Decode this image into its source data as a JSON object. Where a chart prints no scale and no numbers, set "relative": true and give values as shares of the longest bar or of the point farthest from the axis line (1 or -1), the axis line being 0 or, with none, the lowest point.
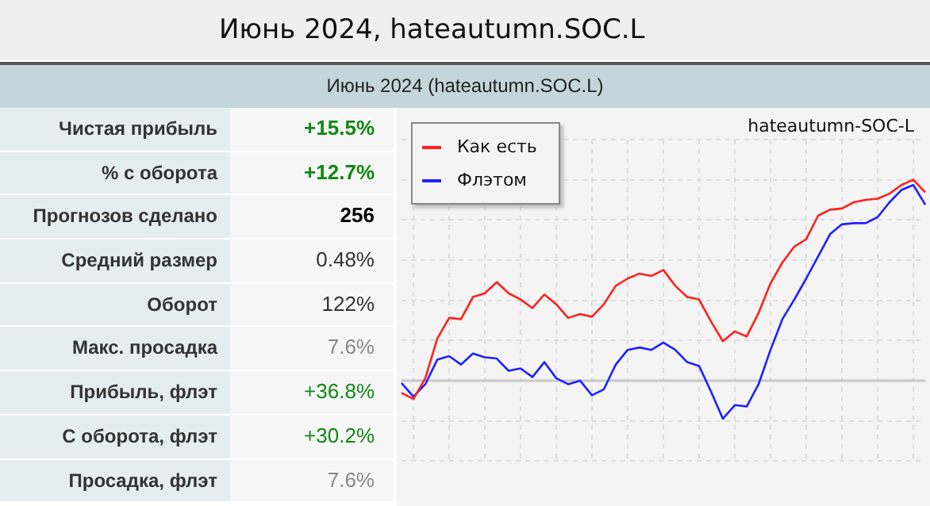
{
  "chart_data": [
    {
      "type": "other",
      "title": "Июнь 2024, hateautumn.SOC.L",
      "subtitle": "Июнь 2024 (hateautumn.SOC.L)",
      "annotations": [
        "Чистая прибыль",
        "+15.5%",
        "% с оборота",
        "+12.7%",
        "Прогнозов сделано",
        "256",
        "Средний размер",
        "0.48%",
        "Оборот",
        "122%",
        "Макс. просадка",
        "7.6%",
        "Прибыль, флэт",
        "+36.8%",
        "С оборота, флэт",
        "+30.2%",
        "Просадка, флэт",
        "7.6%"
      ]
    },
    {
      "type": "line",
      "relative": true,
      "grid": true,
      "legend": "top left",
      "ref_lines": [
        {
          "axis": "y",
          "value": 0,
          "color": "#c8c8c8"
        }
      ],
      "annotations": [
        "hateautumn-SOC-L"
      ],
      "categories": [
        null,
        null,
        null,
        null,
        null,
        null,
        null,
        null,
        null,
        null,
        null,
        null,
        null,
        null,
        null,
        null,
        null,
        null,
        null,
        null,
        null,
        null,
        null,
        null,
        null,
        null,
        null,
        null,
        null,
        null,
        null,
        null,
        null,
        null,
        null,
        null,
        null,
        null,
        null,
        null,
        null,
        null,
        null,
        null,
        null
      ],
      "series": [
        {
          "name": "Как есть",
          "color": "#ff2020",
          "values": [
            -0.061,
            -0.092,
            0.012,
            0.208,
            0.312,
            0.306,
            0.416,
            0.435,
            0.49,
            0.435,
            0.404,
            0.361,
            0.429,
            0.38,
            0.312,
            0.331,
            0.318,
            0.38,
            0.472,
            0.508,
            0.533,
            0.521,
            0.551,
            0.472,
            0.416,
            0.404,
            0.294,
            0.196,
            0.245,
            0.22,
            0.337,
            0.484,
            0.588,
            0.667,
            0.704,
            0.821,
            0.851,
            0.857,
            0.888,
            0.9,
            0.906,
            0.931,
            0.974,
            1,
            0.937
          ]
        },
        {
          "name": "Флэтом",
          "color": "#2020ff",
          "values": [
            -0.012,
            -0.08,
            -0.018,
            0.104,
            0.122,
            0.08,
            0.135,
            0.116,
            0.11,
            0.049,
            0.061,
            0.018,
            0.092,
            0.012,
            -0.018,
            0,
            -0.073,
            -0.043,
            0.08,
            0.153,
            0.165,
            0.153,
            0.19,
            0.153,
            0.092,
            0.073,
            -0.055,
            -0.19,
            -0.122,
            -0.129,
            -0.018,
            0.153,
            0.306,
            0.404,
            0.508,
            0.618,
            0.729,
            0.778,
            0.784,
            0.784,
            0.814,
            0.888,
            0.949,
            0.974,
            0.876
          ]
        }
      ]
    }
  ]
}
